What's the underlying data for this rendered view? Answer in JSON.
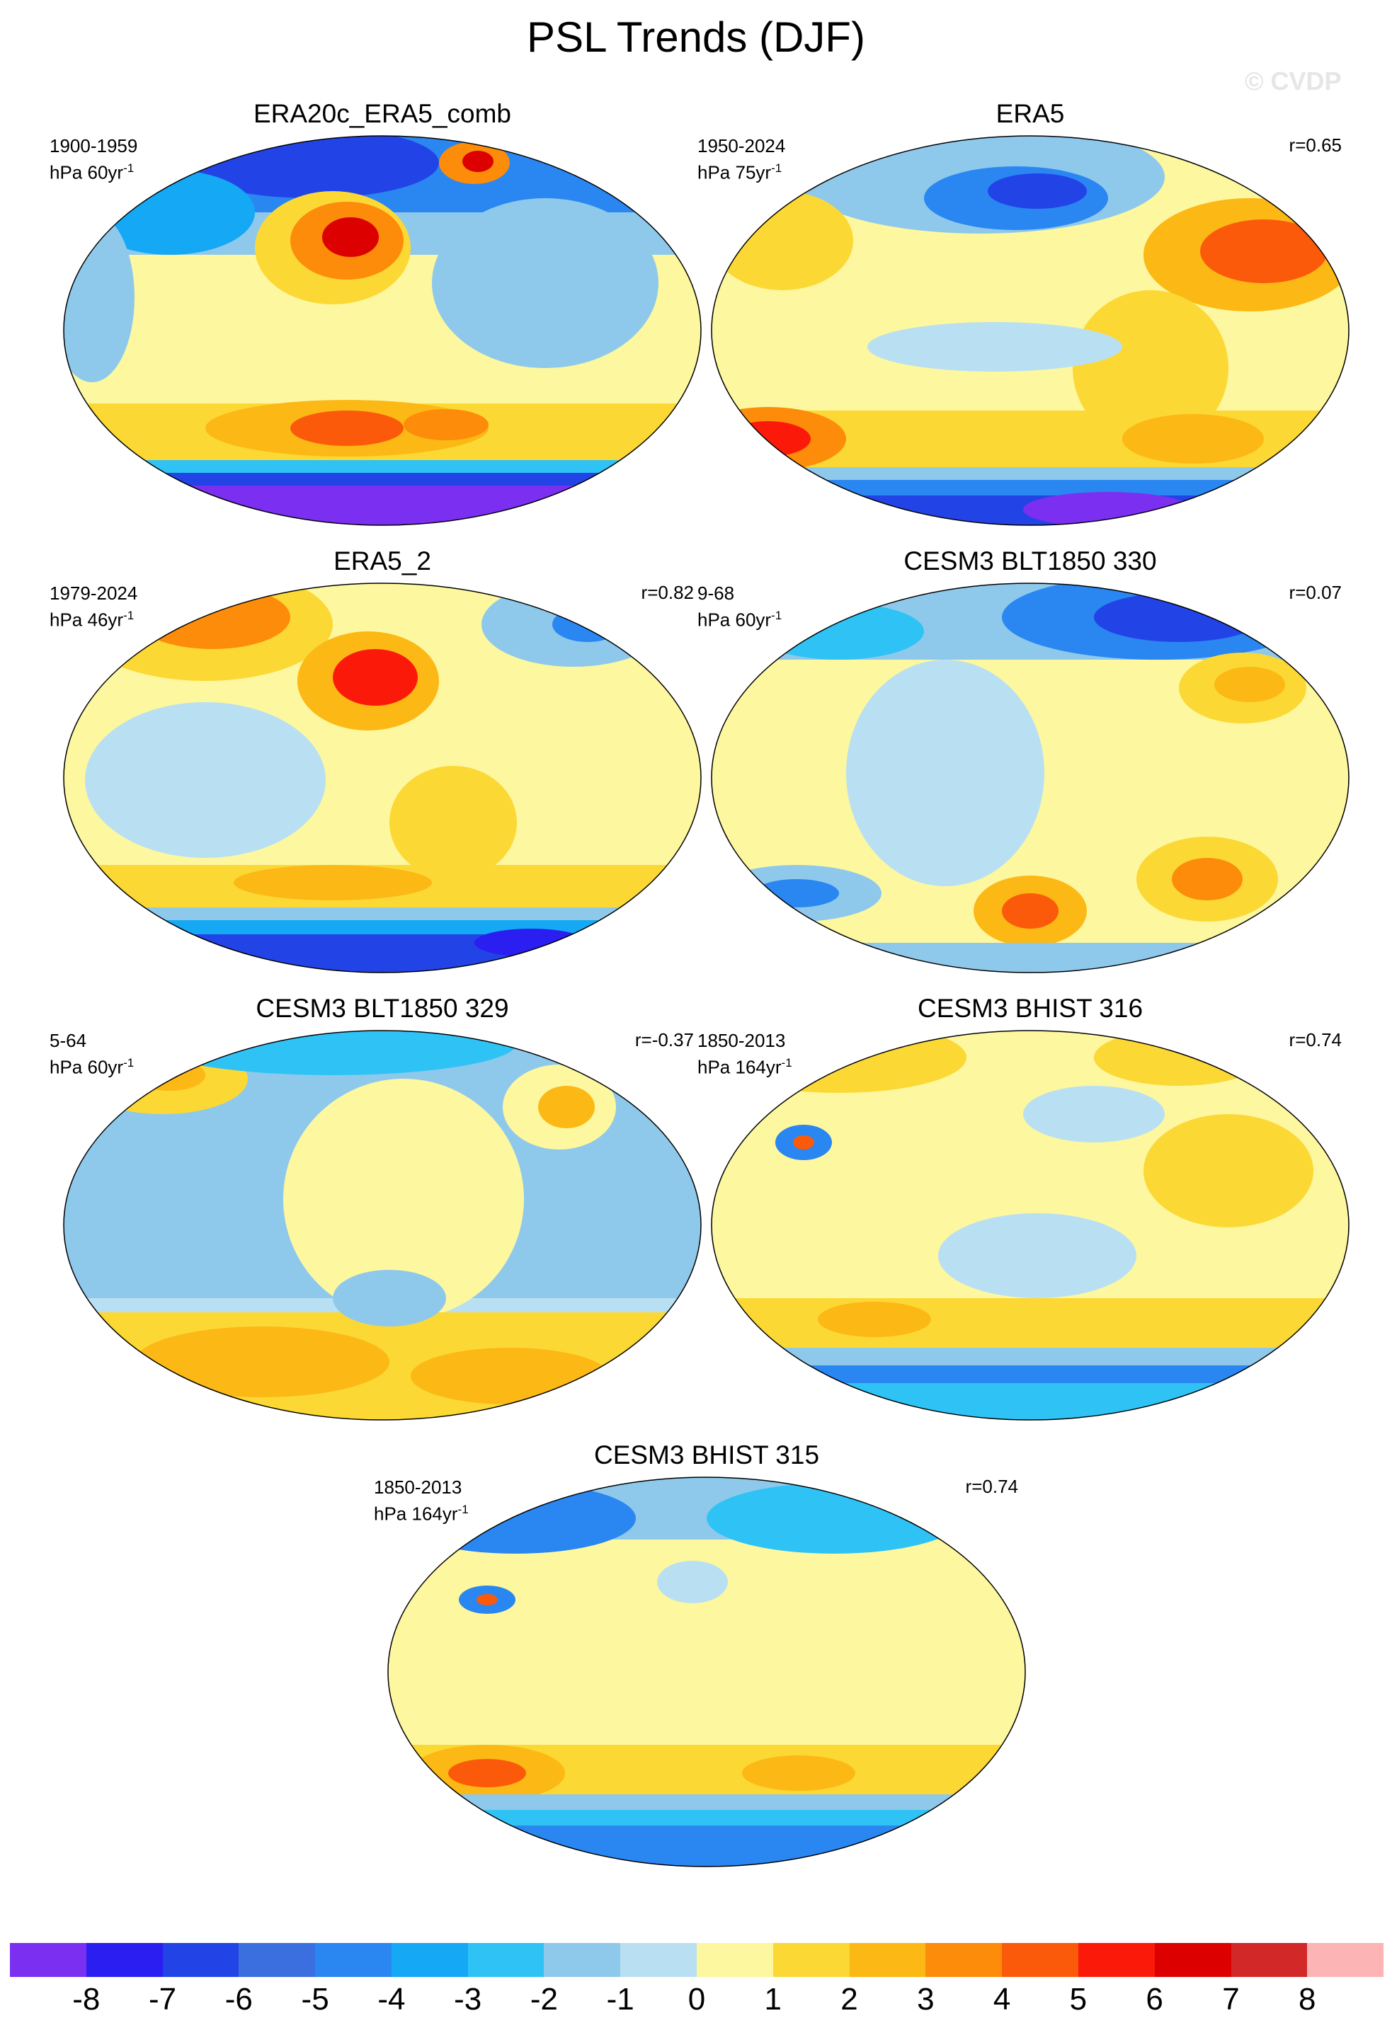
{
  "title": "PSL Trends (DJF)",
  "copyright": "© CVDP",
  "panels": [
    {
      "title": "ERA20c_ERA5_comb",
      "period": "1900-1959",
      "units": "hPa 60yr",
      "units_sup": "-1",
      "r": ""
    },
    {
      "title": "ERA5",
      "period": "1950-2024",
      "units": "hPa 75yr",
      "units_sup": "-1",
      "r": "r=0.65"
    },
    {
      "title": "ERA5_2",
      "period": "1979-2024",
      "units": "hPa 46yr",
      "units_sup": "-1",
      "r": "r=0.82"
    },
    {
      "title": "CESM3 BLT1850 330",
      "period": "9-68",
      "units": "hPa 60yr",
      "units_sup": "-1",
      "r": "r=0.07"
    },
    {
      "title": "CESM3 BLT1850 329",
      "period": "5-64",
      "units": "hPa 60yr",
      "units_sup": "-1",
      "r": "r=-0.37"
    },
    {
      "title": "CESM3 BHIST 316",
      "period": "1850-2013",
      "units": "hPa 164yr",
      "units_sup": "-1",
      "r": "r=0.74"
    },
    {
      "title": "CESM3 BHIST 315",
      "period": "1850-2013",
      "units": "hPa 164yr",
      "units_sup": "-1",
      "r": "r=0.74"
    }
  ],
  "colorbar": {
    "colors": [
      "#7b2ff0",
      "#2a1ef0",
      "#2244e6",
      "#3b6fe0",
      "#2a86f0",
      "#14a8f5",
      "#2fc3f5",
      "#8ec9ec",
      "#b9e0f2",
      "#fdf7a0",
      "#fcd835",
      "#fcb814",
      "#fc8c0a",
      "#fb5a0a",
      "#fb1a0a",
      "#dc0000",
      "#d22828",
      "#fcb4b4"
    ],
    "labels": [
      "-8",
      "-7",
      "-6",
      "-5",
      "-4",
      "-3",
      "-2",
      "-1",
      "0",
      "1",
      "2",
      "3",
      "4",
      "5",
      "6",
      "7",
      "8"
    ]
  }
}
